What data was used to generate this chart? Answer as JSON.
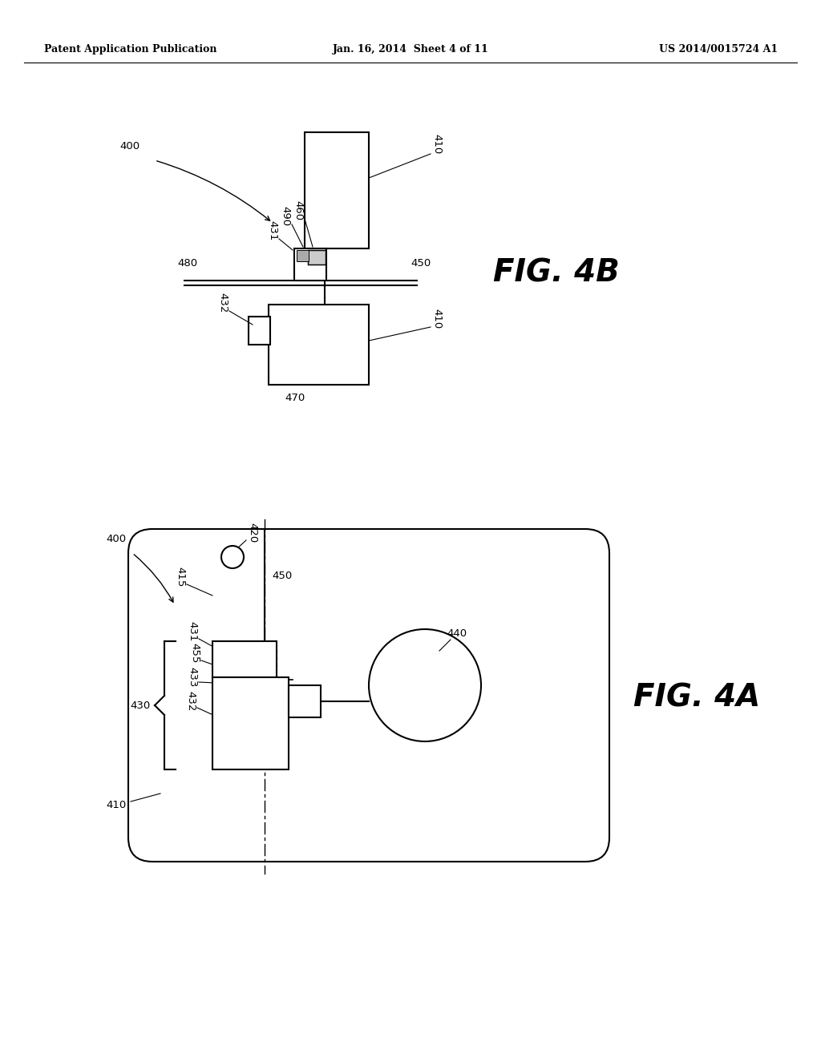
{
  "bg_color": "#ffffff",
  "header_left": "Patent Application Publication",
  "header_center": "Jan. 16, 2014  Sheet 4 of 11",
  "header_right": "US 2014/0015724 A1",
  "fig4b_label": "FIG. 4B",
  "fig4a_label": "FIG. 4A",
  "lw_main": 1.5,
  "lw_thin": 0.9,
  "fs_label": 9.5,
  "fs_fig": 28,
  "fs_header": 9
}
